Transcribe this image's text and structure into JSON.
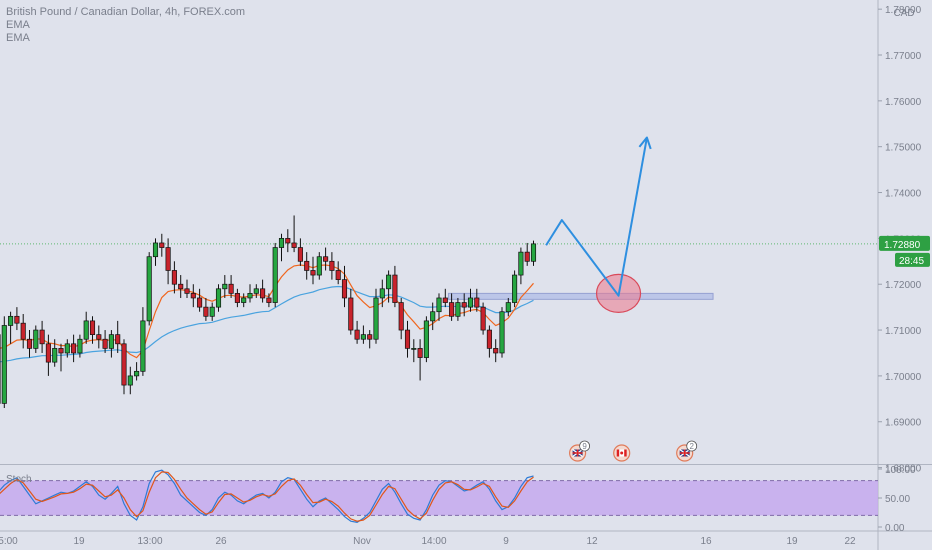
{
  "legend": {
    "symbol": "British Pound / Canadian Dollar, 4h, FOREX.com",
    "ema1": "EMA",
    "ema2": "EMA"
  },
  "colors": {
    "up": "#26a641",
    "down": "#c8232c",
    "ema_fast": "#f0661e",
    "ema_slow": "#4aa3df",
    "forecast": "#2e8fe0",
    "zone": "#b9c3e8",
    "price_line": "#5fb870",
    "stoch_k": "#2e7bd6",
    "stoch_d": "#e0561a",
    "stoch_band": "#c6a9ee"
  },
  "chart_data": [
    {
      "type": "candlestick",
      "title": "British Pound / Canadian Dollar, 4h, FOREX.com",
      "currency": "CAD",
      "ylim": [
        1.681,
        1.782
      ],
      "y_ticks": [
        "1.78000",
        "1.77000",
        "1.76000",
        "1.75000",
        "1.74000",
        "1.73000",
        "1.72000",
        "1.71000",
        "1.70000",
        "1.69000",
        "1.68000"
      ],
      "x_ticks": [
        "5:00",
        "19",
        "13:00",
        "26",
        "Nov",
        "14:00",
        "9",
        "12",
        "16",
        "19",
        "22"
      ],
      "last_price": {
        "value": 1.7288,
        "label": "1.72880",
        "countdown": "28:45"
      },
      "support_zone": [
        1.7167,
        1.718
      ],
      "forecast_path": [
        {
          "bar": 87,
          "price": 1.7285
        },
        {
          "bar": 89.5,
          "price": 1.734
        },
        {
          "bar": 98.5,
          "price": 1.7175
        },
        {
          "bar": 103,
          "price": 1.752
        }
      ],
      "highlight_circle": {
        "bar": 98.5,
        "price": 1.718
      },
      "events": [
        {
          "bar": 92,
          "flag": "GB",
          "count": "9"
        },
        {
          "bar": 99,
          "flag": "CA",
          "count": ""
        },
        {
          "bar": 109,
          "flag": "GB",
          "count": "2"
        }
      ],
      "candles": [
        [
          1.709,
          1.712,
          1.692,
          1.694
        ],
        [
          1.694,
          1.713,
          1.693,
          1.711
        ],
        [
          1.711,
          1.714,
          1.707,
          1.713
        ],
        [
          1.713,
          1.715,
          1.71,
          1.7115
        ],
        [
          1.7115,
          1.7135,
          1.706,
          1.708
        ],
        [
          1.708,
          1.71,
          1.704,
          1.706
        ],
        [
          1.706,
          1.711,
          1.705,
          1.71
        ],
        [
          1.71,
          1.712,
          1.705,
          1.707
        ],
        [
          1.707,
          1.709,
          1.7,
          1.703
        ],
        [
          1.703,
          1.708,
          1.702,
          1.706
        ],
        [
          1.706,
          1.707,
          1.701,
          1.705
        ],
        [
          1.705,
          1.708,
          1.704,
          1.707
        ],
        [
          1.707,
          1.709,
          1.703,
          1.705
        ],
        [
          1.705,
          1.709,
          1.704,
          1.708
        ],
        [
          1.708,
          1.714,
          1.707,
          1.712
        ],
        [
          1.712,
          1.713,
          1.707,
          1.709
        ],
        [
          1.709,
          1.711,
          1.706,
          1.708
        ],
        [
          1.708,
          1.71,
          1.705,
          1.706
        ],
        [
          1.706,
          1.71,
          1.704,
          1.709
        ],
        [
          1.709,
          1.712,
          1.705,
          1.707
        ],
        [
          1.707,
          1.708,
          1.696,
          1.698
        ],
        [
          1.698,
          1.702,
          1.696,
          1.7
        ],
        [
          1.7,
          1.703,
          1.699,
          1.701
        ],
        [
          1.701,
          1.715,
          1.7,
          1.712
        ],
        [
          1.712,
          1.727,
          1.711,
          1.726
        ],
        [
          1.726,
          1.73,
          1.724,
          1.729
        ],
        [
          1.729,
          1.731,
          1.726,
          1.728
        ],
        [
          1.728,
          1.73,
          1.72,
          1.723
        ],
        [
          1.723,
          1.725,
          1.718,
          1.72
        ],
        [
          1.72,
          1.722,
          1.717,
          1.719
        ],
        [
          1.719,
          1.721,
          1.717,
          1.718
        ],
        [
          1.718,
          1.72,
          1.715,
          1.717
        ],
        [
          1.717,
          1.719,
          1.714,
          1.715
        ],
        [
          1.715,
          1.717,
          1.712,
          1.713
        ],
        [
          1.713,
          1.716,
          1.712,
          1.715
        ],
        [
          1.715,
          1.72,
          1.714,
          1.719
        ],
        [
          1.719,
          1.722,
          1.717,
          1.72
        ],
        [
          1.72,
          1.722,
          1.717,
          1.718
        ],
        [
          1.718,
          1.719,
          1.715,
          1.716
        ],
        [
          1.716,
          1.718,
          1.715,
          1.717
        ],
        [
          1.717,
          1.72,
          1.716,
          1.718
        ],
        [
          1.718,
          1.72,
          1.717,
          1.719
        ],
        [
          1.719,
          1.721,
          1.716,
          1.717
        ],
        [
          1.717,
          1.718,
          1.715,
          1.716
        ],
        [
          1.716,
          1.729,
          1.715,
          1.728
        ],
        [
          1.728,
          1.731,
          1.725,
          1.73
        ],
        [
          1.73,
          1.732,
          1.727,
          1.729
        ],
        [
          1.729,
          1.735,
          1.727,
          1.728
        ],
        [
          1.728,
          1.73,
          1.724,
          1.725
        ],
        [
          1.725,
          1.727,
          1.721,
          1.723
        ],
        [
          1.723,
          1.726,
          1.72,
          1.722
        ],
        [
          1.722,
          1.727,
          1.721,
          1.726
        ],
        [
          1.726,
          1.728,
          1.723,
          1.725
        ],
        [
          1.725,
          1.727,
          1.721,
          1.723
        ],
        [
          1.723,
          1.725,
          1.72,
          1.721
        ],
        [
          1.721,
          1.724,
          1.715,
          1.717
        ],
        [
          1.717,
          1.719,
          1.709,
          1.71
        ],
        [
          1.71,
          1.712,
          1.707,
          1.708
        ],
        [
          1.708,
          1.711,
          1.707,
          1.709
        ],
        [
          1.709,
          1.71,
          1.706,
          1.708
        ],
        [
          1.708,
          1.719,
          1.707,
          1.717
        ],
        [
          1.717,
          1.721,
          1.715,
          1.719
        ],
        [
          1.719,
          1.723,
          1.716,
          1.722
        ],
        [
          1.722,
          1.724,
          1.715,
          1.716
        ],
        [
          1.716,
          1.717,
          1.708,
          1.71
        ],
        [
          1.71,
          1.712,
          1.704,
          1.706
        ],
        [
          1.706,
          1.708,
          1.703,
          1.706
        ],
        [
          1.706,
          1.708,
          1.699,
          1.704
        ],
        [
          1.704,
          1.713,
          1.703,
          1.712
        ],
        [
          1.712,
          1.716,
          1.71,
          1.714
        ],
        [
          1.714,
          1.718,
          1.712,
          1.717
        ],
        [
          1.717,
          1.719,
          1.715,
          1.716
        ],
        [
          1.716,
          1.718,
          1.712,
          1.713
        ],
        [
          1.713,
          1.717,
          1.712,
          1.716
        ],
        [
          1.716,
          1.718,
          1.713,
          1.715
        ],
        [
          1.715,
          1.719,
          1.714,
          1.717
        ],
        [
          1.717,
          1.719,
          1.714,
          1.715
        ],
        [
          1.715,
          1.716,
          1.709,
          1.71
        ],
        [
          1.71,
          1.711,
          1.704,
          1.706
        ],
        [
          1.706,
          1.708,
          1.703,
          1.705
        ],
        [
          1.705,
          1.715,
          1.704,
          1.714
        ],
        [
          1.714,
          1.717,
          1.713,
          1.716
        ],
        [
          1.716,
          1.723,
          1.715,
          1.722
        ],
        [
          1.722,
          1.728,
          1.72,
          1.727
        ],
        [
          1.727,
          1.729,
          1.724,
          1.725
        ],
        [
          1.725,
          1.7295,
          1.724,
          1.7288
        ]
      ],
      "ema_fast": [
        1.706,
        1.7062,
        1.707,
        1.7078,
        1.7079,
        1.7077,
        1.7081,
        1.708,
        1.7072,
        1.707,
        1.7066,
        1.7066,
        1.7064,
        1.7067,
        1.7075,
        1.7078,
        1.7079,
        1.7077,
        1.7079,
        1.7078,
        1.7059,
        1.7047,
        1.704,
        1.7055,
        1.7099,
        1.714,
        1.7171,
        1.7184,
        1.7187,
        1.7188,
        1.7186,
        1.7182,
        1.7176,
        1.7167,
        1.7163,
        1.7169,
        1.7175,
        1.7176,
        1.7173,
        1.7172,
        1.7174,
        1.7177,
        1.7176,
        1.7173,
        1.7196,
        1.7216,
        1.7231,
        1.724,
        1.7242,
        1.724,
        1.7236,
        1.7241,
        1.7242,
        1.724,
        1.7234,
        1.7222,
        1.7198,
        1.7175,
        1.7161,
        1.7149,
        1.7153,
        1.716,
        1.7172,
        1.7169,
        1.7153,
        1.7133,
        1.7118,
        1.7102,
        1.7106,
        1.7114,
        1.7125,
        1.7132,
        1.7131,
        1.7136,
        1.7138,
        1.7143,
        1.7145,
        1.7138,
        1.7123,
        1.711,
        1.7116,
        1.7126,
        1.7145,
        1.7171,
        1.7186,
        1.7202
      ],
      "ema_slow": [
        1.703,
        1.7032,
        1.7034,
        1.7037,
        1.7039,
        1.704,
        1.7042,
        1.7044,
        1.7044,
        1.7045,
        1.7045,
        1.7046,
        1.7047,
        1.7048,
        1.7051,
        1.7053,
        1.7054,
        1.7055,
        1.7056,
        1.7057,
        1.7054,
        1.7052,
        1.7051,
        1.7054,
        1.7064,
        1.7075,
        1.7085,
        1.7093,
        1.7099,
        1.7104,
        1.7108,
        1.7111,
        1.7114,
        1.7115,
        1.7117,
        1.7121,
        1.7125,
        1.7128,
        1.713,
        1.7132,
        1.7135,
        1.7138,
        1.714,
        1.7141,
        1.7149,
        1.7157,
        1.7165,
        1.7172,
        1.7177,
        1.718,
        1.7183,
        1.7188,
        1.7191,
        1.7194,
        1.7195,
        1.7194,
        1.7189,
        1.7183,
        1.7178,
        1.7173,
        1.7173,
        1.7174,
        1.7177,
        1.7176,
        1.7172,
        1.7166,
        1.716,
        1.7152,
        1.715,
        1.715,
        1.7151,
        1.7152,
        1.7151,
        1.7152,
        1.7152,
        1.7153,
        1.7153,
        1.715,
        1.7144,
        1.7138,
        1.7138,
        1.7139,
        1.7144,
        1.7152,
        1.7158,
        1.7165
      ]
    },
    {
      "type": "line",
      "title": "Stoch",
      "ylim": [
        0,
        100
      ],
      "y_ticks": [
        "100.00",
        "50.00",
        "0.00"
      ],
      "band": [
        20,
        80
      ],
      "series": [
        {
          "name": "",
          "values": [
            60,
            72,
            80,
            85,
            70,
            55,
            40,
            45,
            50,
            55,
            60,
            58,
            62,
            70,
            78,
            70,
            55,
            48,
            58,
            70,
            40,
            20,
            12,
            35,
            75,
            95,
            98,
            90,
            75,
            55,
            45,
            35,
            25,
            20,
            30,
            50,
            60,
            55,
            45,
            40,
            48,
            55,
            58,
            50,
            60,
            78,
            85,
            82,
            65,
            48,
            35,
            45,
            50,
            40,
            30,
            18,
            10,
            8,
            15,
            25,
            45,
            65,
            75,
            60,
            40,
            22,
            15,
            12,
            30,
            55,
            72,
            80,
            78,
            70,
            62,
            65,
            72,
            78,
            65,
            45,
            30,
            35,
            50,
            70,
            85,
            88
          ]
        },
        {
          "name": "",
          "values": [
            55,
            65,
            75,
            82,
            76,
            62,
            48,
            44,
            48,
            52,
            57,
            58,
            60,
            66,
            74,
            72,
            62,
            52,
            55,
            64,
            50,
            30,
            18,
            28,
            60,
            85,
            95,
            94,
            82,
            65,
            50,
            40,
            30,
            22,
            26,
            42,
            56,
            57,
            50,
            43,
            46,
            52,
            56,
            53,
            57,
            70,
            80,
            83,
            72,
            56,
            42,
            43,
            48,
            44,
            36,
            24,
            14,
            10,
            12,
            20,
            38,
            56,
            70,
            66,
            48,
            30,
            20,
            14,
            24,
            46,
            65,
            76,
            78,
            73,
            65,
            64,
            69,
            75,
            70,
            52,
            36,
            34,
            45,
            62,
            78,
            86
          ]
        }
      ]
    }
  ]
}
